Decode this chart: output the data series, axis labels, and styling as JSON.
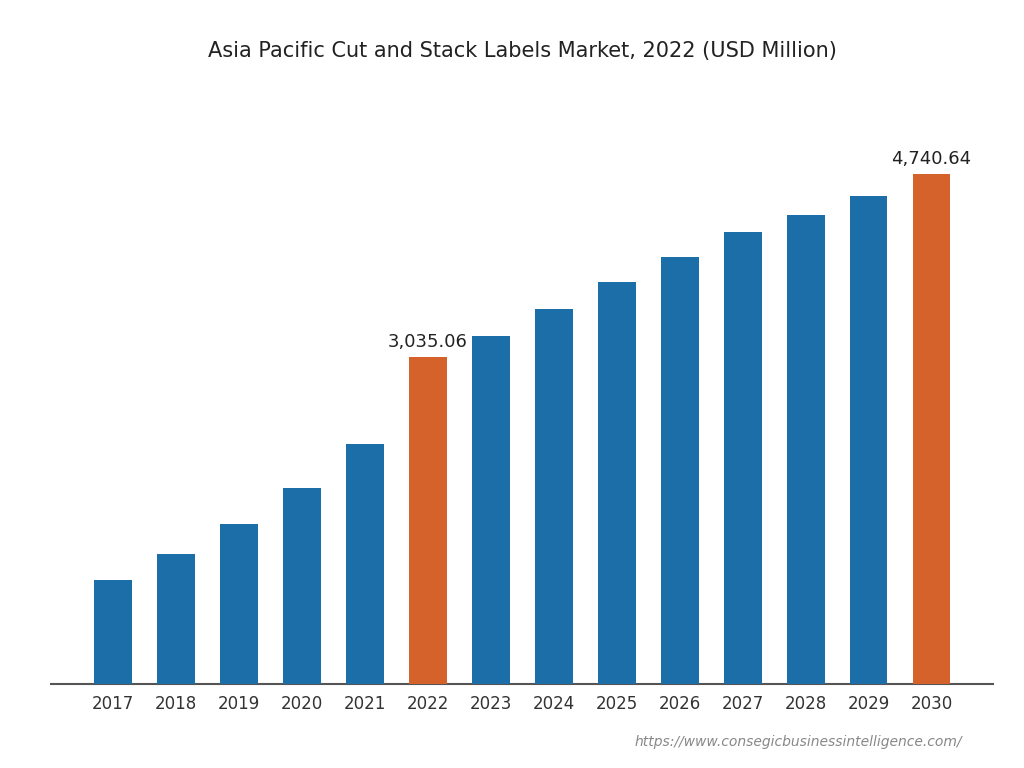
{
  "title": "Asia Pacific Cut and Stack Labels Market, 2022 (USD Million)",
  "years": [
    2017,
    2018,
    2019,
    2020,
    2021,
    2022,
    2023,
    2024,
    2025,
    2026,
    2027,
    2028,
    2029,
    2030
  ],
  "values": [
    960,
    1200,
    1480,
    1820,
    2230,
    3035.06,
    3230,
    3480,
    3730,
    3970,
    4200,
    4360,
    4530,
    4740.64
  ],
  "bar_colors": [
    "#1b6ea8",
    "#1b6ea8",
    "#1b6ea8",
    "#1b6ea8",
    "#1b6ea8",
    "#d4622a",
    "#1b6ea8",
    "#1b6ea8",
    "#1b6ea8",
    "#1b6ea8",
    "#1b6ea8",
    "#1b6ea8",
    "#1b6ea8",
    "#d4622a"
  ],
  "highlight_labels": {
    "2022": "3,035.06",
    "2030": "4,740.64"
  },
  "ylim": [
    0,
    5500
  ],
  "background_color": "#ffffff",
  "bar_width": 0.6,
  "watermark": "https://www.consegicbusinessintelligence.com/",
  "title_fontsize": 15,
  "tick_fontsize": 12,
  "label_fontsize": 13,
  "watermark_fontsize": 10
}
